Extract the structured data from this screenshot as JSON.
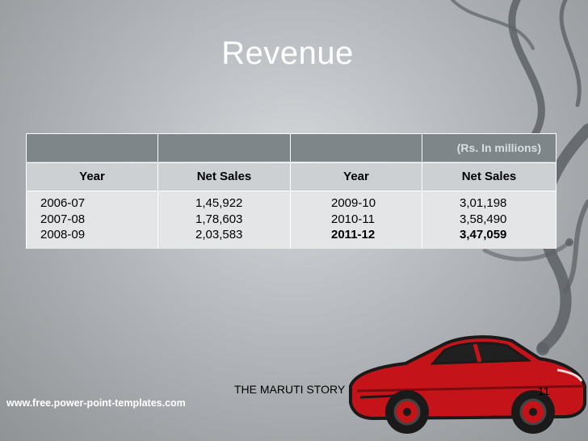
{
  "slide": {
    "title": "Revenue",
    "table": {
      "unit_note": "(Rs. In millions)",
      "headers": [
        "Year",
        "Net Sales",
        "Year",
        "Net Sales"
      ],
      "col1_years": [
        "2006-07",
        "2007-08",
        "2008-09"
      ],
      "col2_sales": [
        "1,45,922",
        "1,78,603",
        "2,03,583"
      ],
      "col3_years": [
        "2009-10",
        "2010-11",
        "2011-12"
      ],
      "col4_sales": [
        "3,01,198",
        "3,58,490",
        "3,47,059"
      ]
    },
    "footer_text": "THE MARUTI STORY",
    "website": "www.free.power-point-templates.com",
    "page_number": "11"
  },
  "colors": {
    "header_band": "#7f868a",
    "row_light": "#cdd0d3",
    "row_lighter": "#e3e5e7",
    "car_body": "#c4141a"
  }
}
